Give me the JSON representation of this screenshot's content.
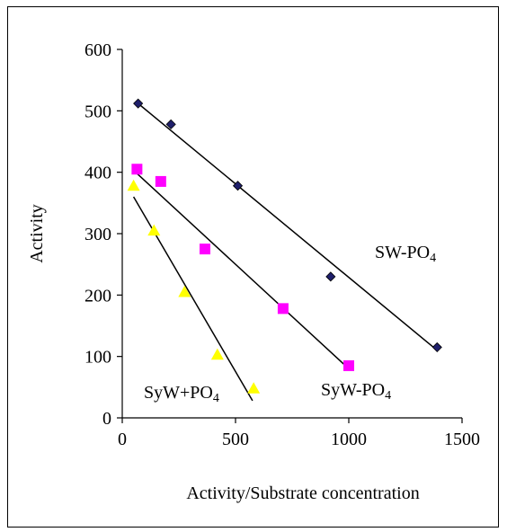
{
  "chart_data": {
    "type": "scatter",
    "title": "",
    "xlabel": "Activity/Substrate concentration",
    "ylabel": "Activity",
    "xlim": [
      0,
      1500
    ],
    "ylim": [
      0,
      600
    ],
    "xticks": [
      0,
      500,
      1000,
      1500
    ],
    "yticks": [
      0,
      100,
      200,
      300,
      400,
      500,
      600
    ],
    "grid": false,
    "legend": "none",
    "series": [
      {
        "label_main": "SW-PO",
        "label_sub": "4",
        "marker": "diamond",
        "color": "#1f1f6b",
        "x": [
          70,
          215,
          510,
          920,
          1390
        ],
        "y": [
          512,
          478,
          378,
          230,
          115
        ],
        "fit": [
          [
            70,
            512
          ],
          [
            1390,
            110
          ]
        ]
      },
      {
        "label_main": "SyW-PO",
        "label_sub": "4",
        "marker": "square",
        "color": "#ff00ff",
        "x": [
          65,
          170,
          365,
          710,
          1000
        ],
        "y": [
          405,
          385,
          275,
          178,
          85
        ],
        "fit": [
          [
            65,
            398
          ],
          [
            1000,
            80
          ]
        ]
      },
      {
        "label_main": "SyW+PO",
        "label_sub": "4",
        "marker": "triangle",
        "color": "#ffff00",
        "x": [
          50,
          140,
          275,
          420,
          580
        ],
        "y": [
          378,
          305,
          205,
          103,
          48
        ],
        "fit": [
          [
            50,
            360
          ],
          [
            575,
            28
          ]
        ]
      }
    ]
  }
}
